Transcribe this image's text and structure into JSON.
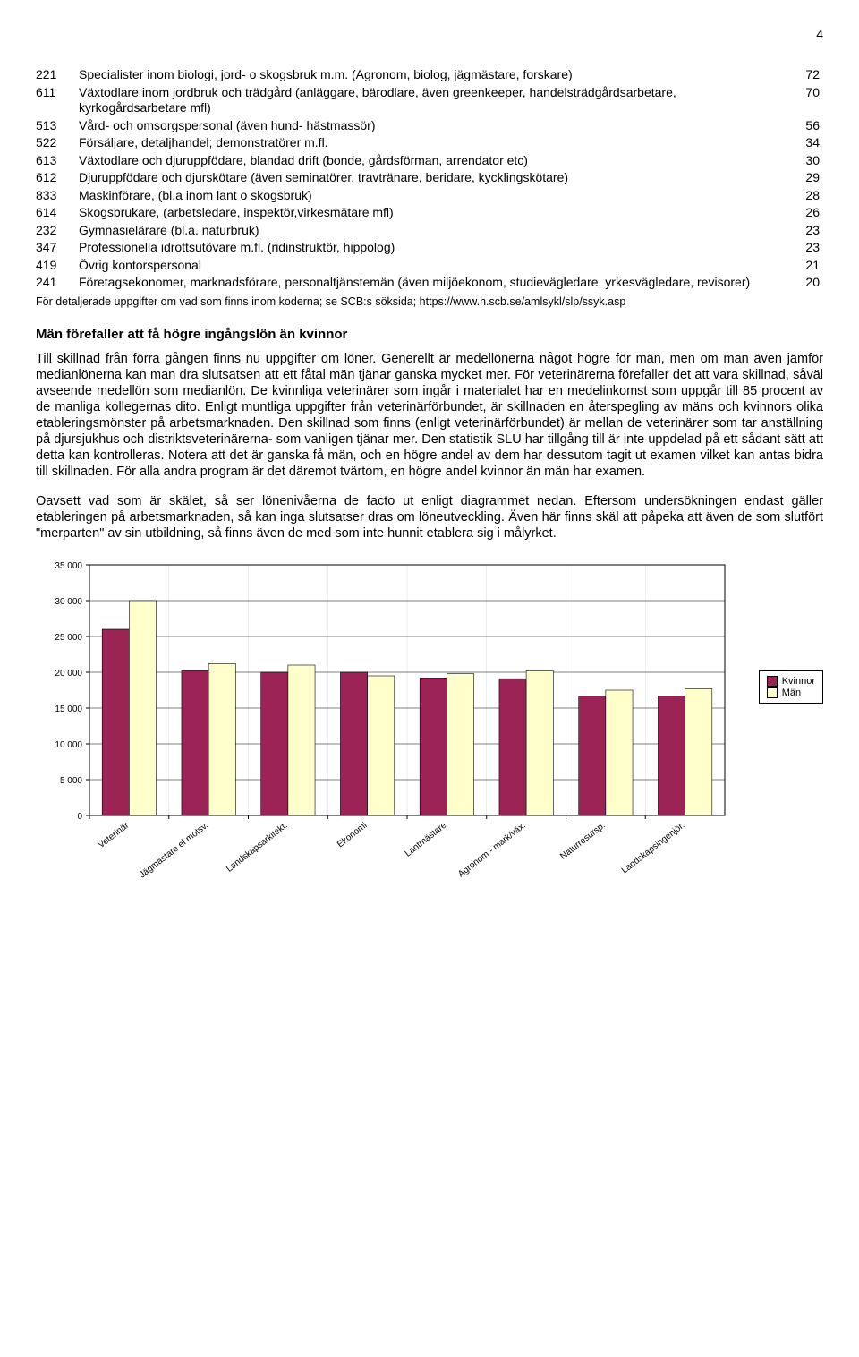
{
  "page_number": "4",
  "code_rows": [
    {
      "code": "221",
      "desc": "Specialister inom biologi, jord- o skogsbruk m.m. (Agronom, biolog, jägmästare, forskare)",
      "val": "72"
    },
    {
      "code": "611",
      "desc": "Växtodlare inom jordbruk och trädgård (anläggare, bärodlare, även greenkeeper, handelsträdgårdsarbetare, kyrkogårdsarbetare mfl)",
      "val": "70"
    },
    {
      "code": "513",
      "desc": "Vård- och omsorgspersonal (även hund- hästmassör)",
      "val": "56"
    },
    {
      "code": "522",
      "desc": "Försäljare, detaljhandel; demonstratörer m.fl.",
      "val": "34"
    },
    {
      "code": "613",
      "desc": "Växtodlare och djuruppfödare, blandad drift (bonde, gårdsförman, arrendator etc)",
      "val": "30"
    },
    {
      "code": "612",
      "desc": "Djuruppfödare och djurskötare (även seminatörer, travtränare, beridare, kycklingskötare)",
      "val": "29"
    },
    {
      "code": "833",
      "desc": "Maskinförare, (bl.a inom lant o skogsbruk)",
      "val": "28"
    },
    {
      "code": "614",
      "desc": "Skogsbrukare, (arbetsledare, inspektör,virkesmätare mfl)",
      "val": "26"
    },
    {
      "code": "232",
      "desc": "Gymnasielärare (bl.a. naturbruk)",
      "val": "23"
    },
    {
      "code": "347",
      "desc": "Professionella idrottsutövare m.fl. (ridinstruktör, hippolog)",
      "val": "23"
    },
    {
      "code": "419",
      "desc": "Övrig kontorspersonal",
      "val": "21"
    },
    {
      "code": "241",
      "desc": "Företagsekonomer, marknadsförare, personaltjänstemän (även miljöekonom, studievägledare, yrkesvägledare, revisorer)",
      "val": "20"
    }
  ],
  "footnote": "För detaljerade uppgifter om vad som finns inom koderna; se SCB:s söksida; https://www.h.scb.se/amlsykl/slp/ssyk.asp",
  "heading": "Män förefaller att få högre ingångslön än kvinnor",
  "para1": "Till skillnad från förra gången finns nu uppgifter om löner. Generellt är medellönerna något högre för män, men om man även jämför medianlönerna kan man dra slutsatsen att ett fåtal män tjänar ganska mycket mer. För veterinärerna förefaller det att vara skillnad, såväl avseende medellön som medianlön. De kvinnliga veterinärer som ingår i materialet har en medelinkomst som uppgår till 85 procent av de manliga kollegernas dito. Enligt muntliga uppgifter från veterinärförbundet, är skillnaden en återspegling av mäns och kvinnors olika etableringsmönster på arbetsmarknaden. Den skillnad som finns (enligt veterinärförbundet) är mellan de veterinärer som tar anställning på djursjukhus och distriktsveterinärerna- som vanligen tjänar mer. Den statistik SLU har tillgång till är inte uppdelad på ett sådant sätt att detta kan kontrolleras. Notera att det är ganska få män, och en högre andel av dem har dessutom tagit ut examen vilket kan antas bidra till skillnaden. För alla andra program är det däremot tvärtom, en högre andel kvinnor än män har examen.",
  "para2": "Oavsett vad som är skälet, så ser lönenivåerna de facto ut enligt diagrammet nedan. Eftersom undersökningen endast gäller etableringen på arbetsmarknaden, så kan inga slutsatser dras om löneutveckling. Även här finns skäl att påpeka att även de som slutfört \"merparten\" av sin utbildning, så finns även de med som inte hunnit etablera sig i målyrket.",
  "chart": {
    "type": "bar",
    "categories": [
      "Veterinär",
      "Jägmästare el motsv.",
      "Landskapsarkitekt.",
      "Ekonomi",
      "Lantmästare",
      "Agronom - mark/väx.",
      "Naturresursp.",
      "Landskapsingenjör."
    ],
    "series": [
      {
        "name": "Kvinnor",
        "color": "#9b2356",
        "values": [
          26000,
          20200,
          20000,
          20000,
          19200,
          19100,
          16700,
          16700
        ]
      },
      {
        "name": "Män",
        "color": "#ffffcc",
        "values": [
          30000,
          21200,
          21000,
          19500,
          19800,
          20200,
          17500,
          17700
        ]
      }
    ],
    "ylim": [
      0,
      35000
    ],
    "ytick_step": 5000,
    "plot_bg": "#ffffff",
    "grid_color": "#000000",
    "axis_color": "#000000",
    "label_fontsize": 10,
    "bar_width": 0.34,
    "legend_labels": [
      "Kvinnor",
      "Män"
    ]
  }
}
